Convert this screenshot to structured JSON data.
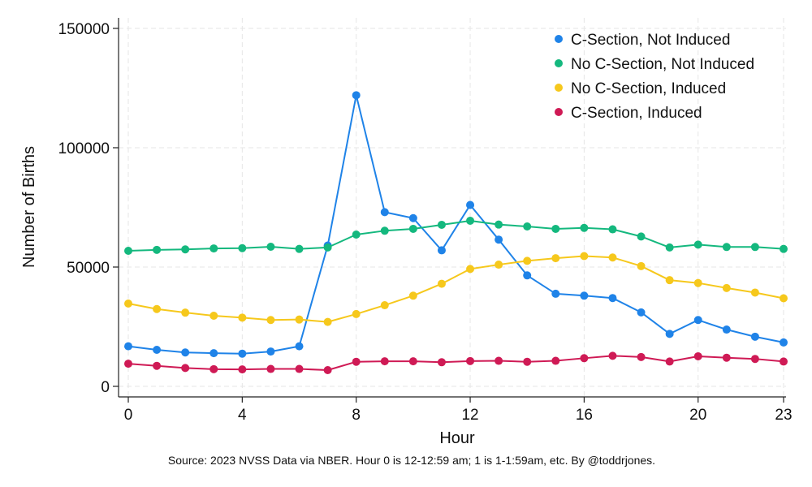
{
  "chart_data": {
    "type": "line",
    "title": "",
    "xlabel": "Hour",
    "ylabel": "Number of Births",
    "xlim": [
      0,
      23
    ],
    "ylim": [
      0,
      150000
    ],
    "xticks": [
      0,
      4,
      8,
      12,
      16,
      20,
      23
    ],
    "yticks": [
      0,
      50000,
      100000,
      150000
    ],
    "grid": true,
    "legend_position": "top-right",
    "x": [
      0,
      1,
      2,
      3,
      4,
      5,
      6,
      7,
      8,
      9,
      10,
      11,
      12,
      13,
      14,
      15,
      16,
      17,
      18,
      19,
      20,
      21,
      22,
      23
    ],
    "series": [
      {
        "name": "C-Section, Not Induced",
        "color": "#1f83e8",
        "values": [
          16800,
          15300,
          14200,
          13900,
          13700,
          14600,
          16800,
          59000,
          122000,
          73000,
          70500,
          57000,
          76000,
          61500,
          46500,
          38800,
          38000,
          37000,
          31000,
          22000,
          27800,
          23800,
          20800,
          18400
        ]
      },
      {
        "name": "No C-Section, Not Induced",
        "color": "#14b87e",
        "values": [
          56800,
          57200,
          57400,
          57800,
          57900,
          58500,
          57600,
          58200,
          63600,
          65200,
          66000,
          67700,
          69400,
          67800,
          67000,
          66000,
          66400,
          65800,
          62800,
          58200,
          59400,
          58400,
          58400,
          57600
        ]
      },
      {
        "name": "No C-Section, Induced",
        "color": "#f6c81c",
        "values": [
          34700,
          32400,
          30900,
          29600,
          28800,
          27800,
          28000,
          27000,
          30300,
          34000,
          38000,
          43000,
          49200,
          51000,
          52600,
          53700,
          54600,
          54000,
          50400,
          44500,
          43300,
          41200,
          39300,
          36900
        ]
      },
      {
        "name": "C-Section, Induced",
        "color": "#cf1a55",
        "values": [
          9500,
          8600,
          7700,
          7200,
          7100,
          7300,
          7300,
          6800,
          10300,
          10500,
          10500,
          10100,
          10600,
          10700,
          10300,
          10700,
          11800,
          12800,
          12300,
          10400,
          12600,
          12000,
          11500,
          10400
        ]
      }
    ],
    "source_note": "Source: 2023 NVSS Data via NBER. Hour 0 is 12-12:59 am; 1 is 1-1:59am, etc. By @toddrjones."
  }
}
